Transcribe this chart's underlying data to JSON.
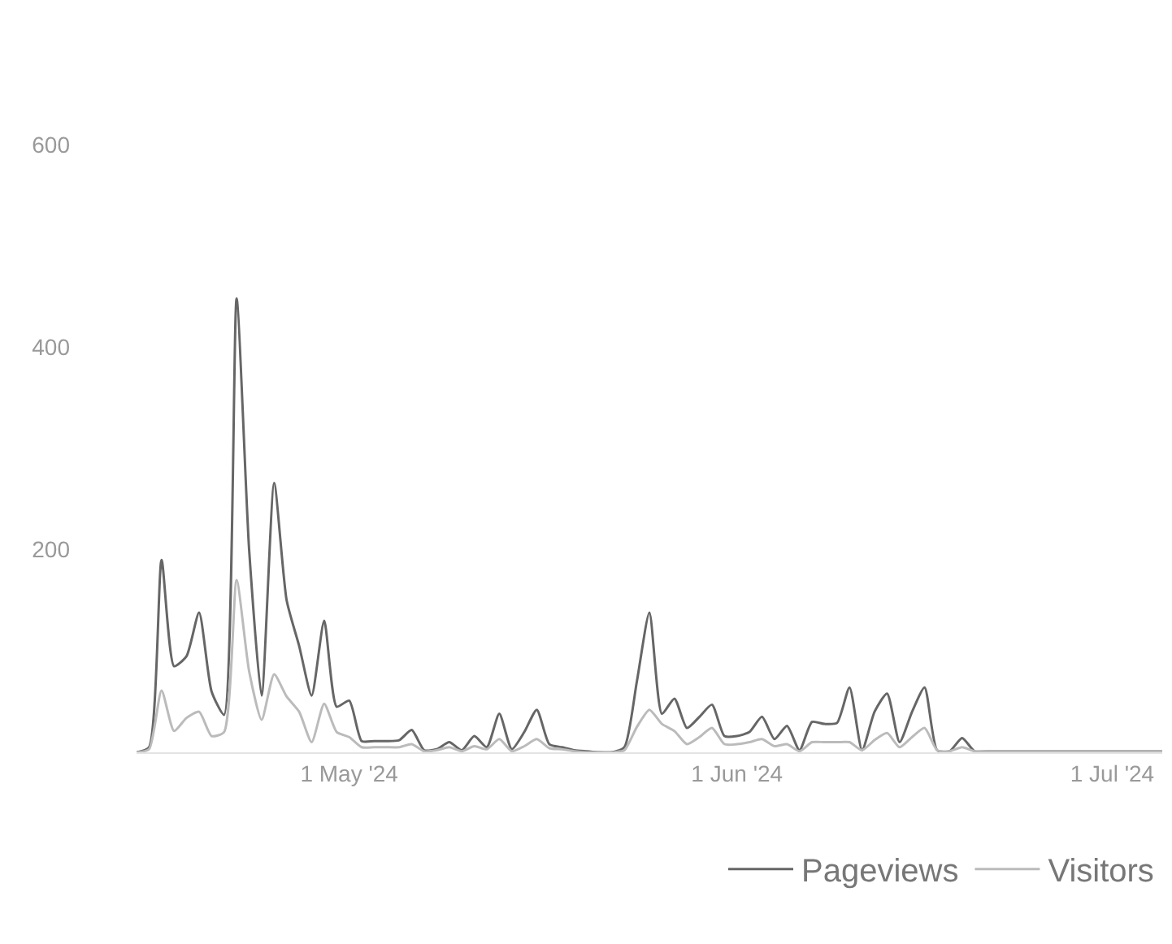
{
  "chart_data": {
    "type": "line",
    "x": [
      "2024-04-14",
      "2024-04-15",
      "2024-04-16",
      "2024-04-17",
      "2024-04-18",
      "2024-04-19",
      "2024-04-20",
      "2024-04-21",
      "2024-04-22",
      "2024-04-23",
      "2024-04-24",
      "2024-04-25",
      "2024-04-26",
      "2024-04-27",
      "2024-04-28",
      "2024-04-29",
      "2024-04-30",
      "2024-05-01",
      "2024-05-02",
      "2024-05-03",
      "2024-05-04",
      "2024-05-05",
      "2024-05-06",
      "2024-05-07",
      "2024-05-08",
      "2024-05-09",
      "2024-05-10",
      "2024-05-11",
      "2024-05-12",
      "2024-05-13",
      "2024-05-14",
      "2024-05-15",
      "2024-05-16",
      "2024-05-17",
      "2024-05-18",
      "2024-05-19",
      "2024-05-20",
      "2024-05-21",
      "2024-05-22",
      "2024-05-23",
      "2024-05-24",
      "2024-05-25",
      "2024-05-26",
      "2024-05-27",
      "2024-05-28",
      "2024-05-29",
      "2024-05-30",
      "2024-05-31",
      "2024-06-01",
      "2024-06-02",
      "2024-06-03",
      "2024-06-04",
      "2024-06-05",
      "2024-06-06",
      "2024-06-07",
      "2024-06-08",
      "2024-06-09",
      "2024-06-10",
      "2024-06-11",
      "2024-06-12",
      "2024-06-13",
      "2024-06-14",
      "2024-06-15",
      "2024-06-16",
      "2024-06-17",
      "2024-06-18",
      "2024-06-19",
      "2024-06-20",
      "2024-06-21",
      "2024-06-22",
      "2024-06-23",
      "2024-06-24",
      "2024-06-25",
      "2024-06-26",
      "2024-06-27",
      "2024-06-28",
      "2024-06-29",
      "2024-06-30",
      "2024-07-01",
      "2024-07-02",
      "2024-07-03",
      "2024-07-04",
      "2024-07-05"
    ],
    "series": [
      {
        "name": "Pageviews",
        "color": "#666666",
        "values": [
          0,
          5,
          190,
          85,
          95,
          138,
          60,
          37,
          448,
          200,
          56,
          266,
          150,
          105,
          56,
          130,
          45,
          51,
          11,
          11,
          11,
          12,
          22,
          2,
          3,
          10,
          2,
          16,
          5,
          38,
          3,
          20,
          42,
          8,
          5,
          2,
          1,
          0,
          0,
          5,
          70,
          138,
          38,
          53,
          24,
          35,
          47,
          16,
          16,
          20,
          35,
          13,
          26,
          2,
          30,
          28,
          29,
          64,
          2,
          40,
          58,
          10,
          40,
          64,
          2,
          1,
          14,
          1,
          1,
          1,
          1,
          1,
          1,
          1,
          1,
          1,
          1,
          1,
          1,
          1,
          1,
          1,
          1
        ]
      },
      {
        "name": "Visitors",
        "color": "#bbbbbb",
        "values": [
          0,
          3,
          61,
          21,
          34,
          40,
          16,
          20,
          170,
          80,
          32,
          77,
          55,
          40,
          10,
          48,
          20,
          15,
          5,
          5,
          5,
          5,
          8,
          1,
          2,
          5,
          1,
          6,
          3,
          13,
          1,
          6,
          13,
          4,
          3,
          1,
          0,
          0,
          0,
          2,
          25,
          42,
          28,
          21,
          8,
          15,
          24,
          8,
          8,
          10,
          13,
          6,
          8,
          1,
          10,
          10,
          10,
          10,
          2,
          12,
          19,
          5,
          15,
          24,
          2,
          1,
          5,
          1,
          1,
          1,
          1,
          1,
          1,
          1,
          1,
          1,
          1,
          1,
          1,
          1,
          1,
          1,
          1
        ]
      }
    ],
    "xticks": [
      {
        "value": "2024-05-01",
        "label": "1 May '24"
      },
      {
        "value": "2024-06-01",
        "label": "1 Jun '24"
      },
      {
        "value": "2024-07-01",
        "label": "1 Jul '24"
      }
    ],
    "xlim": [
      "2024-04-14",
      "2024-07-05"
    ],
    "ylim": [
      0,
      600
    ],
    "yticks": [
      200,
      400,
      600
    ],
    "grid": false,
    "legend": "bottom right",
    "marker": "none",
    "line_style": "solid"
  }
}
